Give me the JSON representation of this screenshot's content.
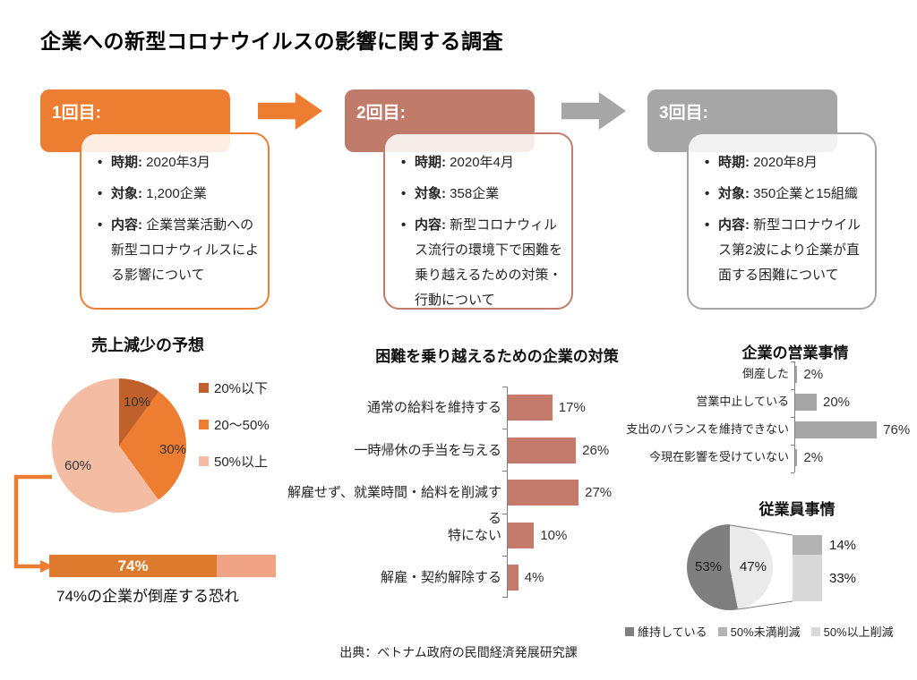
{
  "title": "企業への新型コロナウイルスの影響に関する調査",
  "phases": [
    {
      "label": "1回目:",
      "color": "#ED7D31",
      "items": [
        {
          "key": "時期:",
          "text": "2020年3月"
        },
        {
          "key": "対象:",
          "text": "1,200企業"
        },
        {
          "key": "内容:",
          "text": "企業営業活動への新型コロナウィルスによる影響について"
        }
      ]
    },
    {
      "label": "2回目:",
      "color": "#C07B6B",
      "items": [
        {
          "key": "時期:",
          "text": "2020年4月"
        },
        {
          "key": "対象:",
          "text": "358企業"
        },
        {
          "key": "内容:",
          "text": "新型コロナウィルス流行の環境下で困難を乗り越えるための対策・行動について"
        }
      ]
    },
    {
      "label": "3回目:",
      "color": "#A6A6A6",
      "items": [
        {
          "key": "時期:",
          "text": "2020年8月"
        },
        {
          "key": "対象:",
          "text": "350企業と15組織"
        },
        {
          "key": "内容:",
          "text": "新型コロナウイルス第2波により企業が直面する困難について"
        }
      ]
    }
  ],
  "flow_arrows": [
    {
      "color": "#ED7D31"
    },
    {
      "color": "#A6A6A6"
    }
  ],
  "chart_data": [
    {
      "type": "pie",
      "title": "売上減少の予想",
      "legend_position": "right",
      "slices": [
        {
          "label": "20%以下",
          "value": 10,
          "display": "10%",
          "color": "#C0612C"
        },
        {
          "label": "20〜50%",
          "value": 30,
          "display": "30%",
          "color": "#ED7D31"
        },
        {
          "label": "50%以上",
          "value": 60,
          "display": "60%",
          "color": "#F4BCA3"
        }
      ],
      "callout": {
        "type": "bar",
        "value": 74,
        "display": "74%",
        "value_color": "#DD7A2E",
        "rest": 26,
        "rest_color": "#F0A285",
        "caption": "74%の企業が倒産する恐れ"
      }
    },
    {
      "type": "bar",
      "title": "困難を乗り越えるための企業の対策",
      "orientation": "horizontal",
      "color": "#C47B6C",
      "xlim": [
        0,
        30
      ],
      "rows": [
        {
          "label": "通常の給料を維持する",
          "value": 17,
          "display": "17%"
        },
        {
          "label": "一時帰休の手当を与える",
          "value": 26,
          "display": "26%"
        },
        {
          "label": "解雇せず、就業時間・給料を削減する",
          "value": 27,
          "display": "27%"
        },
        {
          "label": "特にない",
          "value": 10,
          "display": "10%"
        },
        {
          "label": "解雇・契約解除する",
          "value": 4,
          "display": "4%"
        }
      ]
    },
    {
      "type": "bar",
      "title": "企業の営業事情",
      "orientation": "horizontal",
      "color": "#A6A6A6",
      "xlim": [
        0,
        80
      ],
      "rows": [
        {
          "label": "倒産した",
          "value": 2,
          "display": "2%"
        },
        {
          "label": "営業中止している",
          "value": 20,
          "display": "20%"
        },
        {
          "label": "支出のバランスを維持できない",
          "value": 76,
          "display": "76%"
        },
        {
          "label": "今現在影響を受けていない",
          "value": 2,
          "display": "2%"
        }
      ]
    },
    {
      "type": "bar-of-pie",
      "title": "従業員事情",
      "slices": [
        {
          "label": "維持している",
          "value": 53,
          "display": "53%",
          "color": "#7F7F7F"
        },
        {
          "label": "",
          "value": 47,
          "display": "47%",
          "color": "#EAEAEA"
        }
      ],
      "draw": [
        {
          "value": 47,
          "color": "#EAEAEA"
        },
        {
          "value": 53,
          "color": "#7F7F7F"
        }
      ],
      "breakout": [
        {
          "label": "50%未満削減",
          "value": 14,
          "display": "14%",
          "color": "#B3B3B3"
        },
        {
          "label": "50%以上削減",
          "value": 33,
          "display": "33%",
          "color": "#D9D9D9"
        }
      ],
      "legend": [
        {
          "label": "維持している",
          "color": "#7F7F7F"
        },
        {
          "label": "50%未満削減",
          "color": "#B3B3B3"
        },
        {
          "label": "50%以上削減",
          "color": "#D9D9D9"
        }
      ]
    }
  ],
  "source": "出典：ベトナム政府の民間経済発展研究課"
}
